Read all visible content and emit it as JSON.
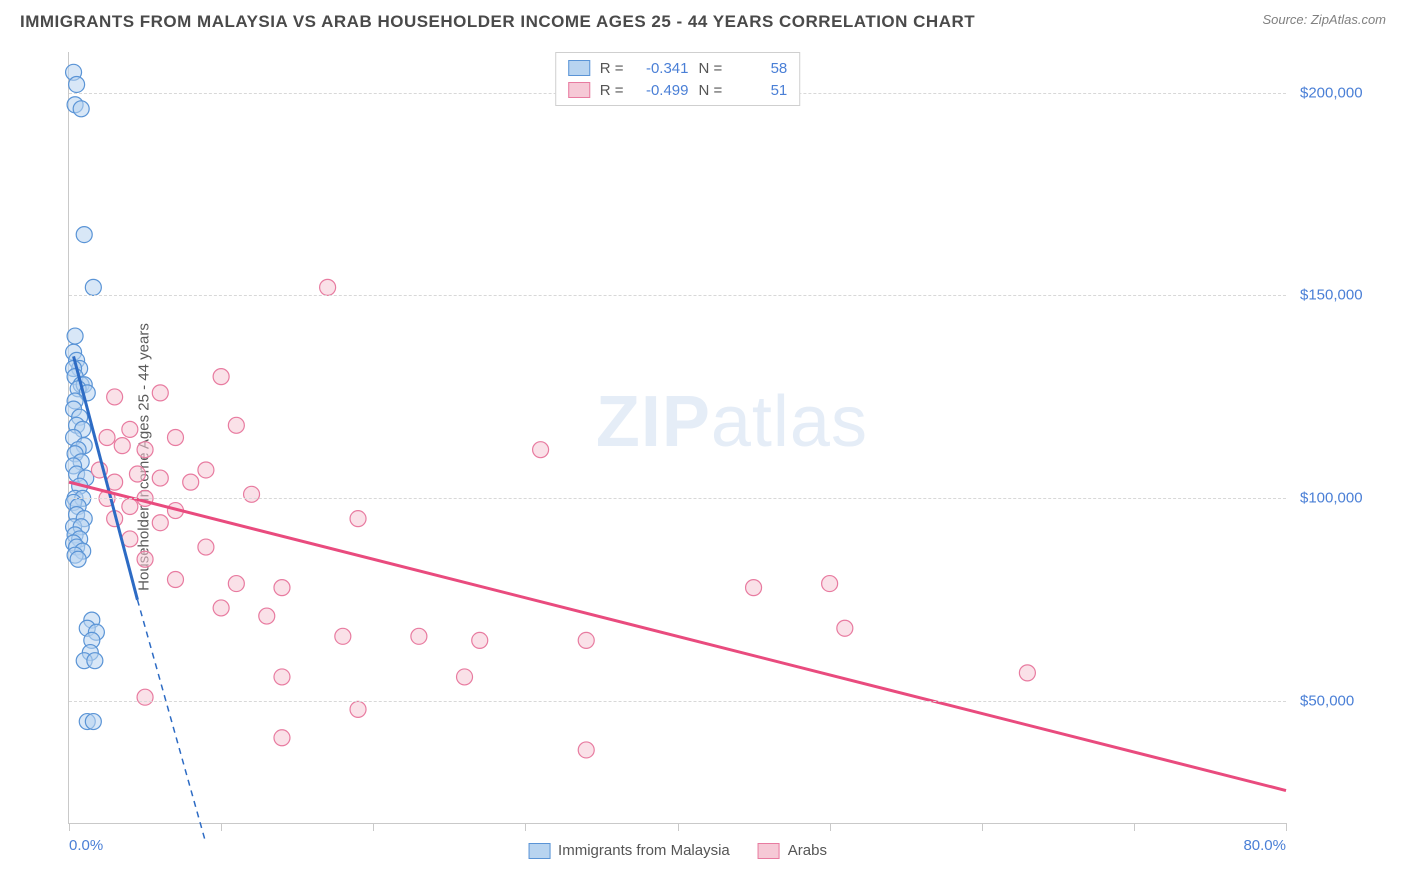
{
  "title": "IMMIGRANTS FROM MALAYSIA VS ARAB HOUSEHOLDER INCOME AGES 25 - 44 YEARS CORRELATION CHART",
  "source": "Source: ZipAtlas.com",
  "ylabel": "Householder Income Ages 25 - 44 years",
  "watermark_a": "ZIP",
  "watermark_b": "atlas",
  "chart": {
    "type": "scatter",
    "background_color": "#ffffff",
    "grid_color": "#d8d8d8",
    "axis_color": "#c9c9c9",
    "text_color": "#5a5a5a",
    "value_color": "#4a7fd6",
    "xlim": [
      0,
      80
    ],
    "ylim": [
      20000,
      210000
    ],
    "x_ticks": [
      0,
      10,
      20,
      30,
      40,
      50,
      60,
      70,
      80
    ],
    "x_tick_labels": {
      "0": "0.0%",
      "80": "80.0%"
    },
    "y_gridlines": [
      50000,
      100000,
      150000,
      200000
    ],
    "y_tick_labels": [
      "$50,000",
      "$100,000",
      "$150,000",
      "$200,000"
    ],
    "marker_radius": 8,
    "marker_stroke_width": 1.2,
    "trend_line_width": 3,
    "series": [
      {
        "name": "Immigrants from Malaysia",
        "fill": "#b8d4f0",
        "stroke": "#5a94d6",
        "fill_opacity": 0.55,
        "R": "-0.341",
        "N": "58",
        "trend_color": "#2d6bc4",
        "trend": {
          "x1": 0.3,
          "y1": 135000,
          "x2": 4.5,
          "y2": 75000
        },
        "trend_dash": {
          "x1": 4.5,
          "y1": 75000,
          "x2": 9,
          "y2": 15000
        },
        "points": [
          [
            0.3,
            205000
          ],
          [
            0.5,
            202000
          ],
          [
            0.4,
            197000
          ],
          [
            0.8,
            196000
          ],
          [
            1.0,
            165000
          ],
          [
            1.6,
            152000
          ],
          [
            0.4,
            140000
          ],
          [
            0.3,
            136000
          ],
          [
            0.5,
            134000
          ],
          [
            0.7,
            132000
          ],
          [
            0.3,
            132000
          ],
          [
            0.4,
            130000
          ],
          [
            0.8,
            128000
          ],
          [
            1.0,
            128000
          ],
          [
            0.6,
            127000
          ],
          [
            1.2,
            126000
          ],
          [
            0.4,
            124000
          ],
          [
            0.3,
            122000
          ],
          [
            0.7,
            120000
          ],
          [
            0.5,
            118000
          ],
          [
            0.9,
            117000
          ],
          [
            0.3,
            115000
          ],
          [
            1.0,
            113000
          ],
          [
            0.6,
            112000
          ],
          [
            0.4,
            111000
          ],
          [
            0.8,
            109000
          ],
          [
            0.3,
            108000
          ],
          [
            0.5,
            106000
          ],
          [
            1.1,
            105000
          ],
          [
            0.7,
            103000
          ],
          [
            0.4,
            100000
          ],
          [
            0.9,
            100000
          ],
          [
            0.3,
            99000
          ],
          [
            0.6,
            98000
          ],
          [
            0.5,
            96000
          ],
          [
            1.0,
            95000
          ],
          [
            0.3,
            93000
          ],
          [
            0.8,
            93000
          ],
          [
            0.4,
            91000
          ],
          [
            0.7,
            90000
          ],
          [
            0.3,
            89000
          ],
          [
            0.5,
            88000
          ],
          [
            0.9,
            87000
          ],
          [
            0.4,
            86000
          ],
          [
            0.6,
            85000
          ],
          [
            1.5,
            70000
          ],
          [
            1.2,
            68000
          ],
          [
            1.8,
            67000
          ],
          [
            1.5,
            65000
          ],
          [
            1.4,
            62000
          ],
          [
            1.0,
            60000
          ],
          [
            1.7,
            60000
          ],
          [
            1.2,
            45000
          ],
          [
            1.6,
            45000
          ]
        ]
      },
      {
        "name": "Arabs",
        "fill": "#f6c9d6",
        "stroke": "#e87ba0",
        "fill_opacity": 0.55,
        "R": "-0.499",
        "N": "51",
        "trend_color": "#e94b7e",
        "trend": {
          "x1": 0,
          "y1": 104000,
          "x2": 80,
          "y2": 28000
        },
        "points": [
          [
            17,
            152000
          ],
          [
            10,
            130000
          ],
          [
            6,
            126000
          ],
          [
            3,
            125000
          ],
          [
            11,
            118000
          ],
          [
            4,
            117000
          ],
          [
            2.5,
            115000
          ],
          [
            7,
            115000
          ],
          [
            3.5,
            113000
          ],
          [
            5,
            112000
          ],
          [
            31,
            112000
          ],
          [
            9,
            107000
          ],
          [
            2,
            107000
          ],
          [
            4.5,
            106000
          ],
          [
            6,
            105000
          ],
          [
            3,
            104000
          ],
          [
            8,
            104000
          ],
          [
            2.5,
            100000
          ],
          [
            5,
            100000
          ],
          [
            12,
            101000
          ],
          [
            4,
            98000
          ],
          [
            7,
            97000
          ],
          [
            3,
            95000
          ],
          [
            6,
            94000
          ],
          [
            19,
            95000
          ],
          [
            4,
            90000
          ],
          [
            9,
            88000
          ],
          [
            5,
            85000
          ],
          [
            7,
            80000
          ],
          [
            11,
            79000
          ],
          [
            14,
            78000
          ],
          [
            45,
            78000
          ],
          [
            50,
            79000
          ],
          [
            10,
            73000
          ],
          [
            13,
            71000
          ],
          [
            18,
            66000
          ],
          [
            23,
            66000
          ],
          [
            27,
            65000
          ],
          [
            34,
            65000
          ],
          [
            51,
            68000
          ],
          [
            14,
            56000
          ],
          [
            26,
            56000
          ],
          [
            63,
            57000
          ],
          [
            5,
            51000
          ],
          [
            19,
            48000
          ],
          [
            14,
            41000
          ],
          [
            34,
            38000
          ]
        ]
      }
    ]
  }
}
